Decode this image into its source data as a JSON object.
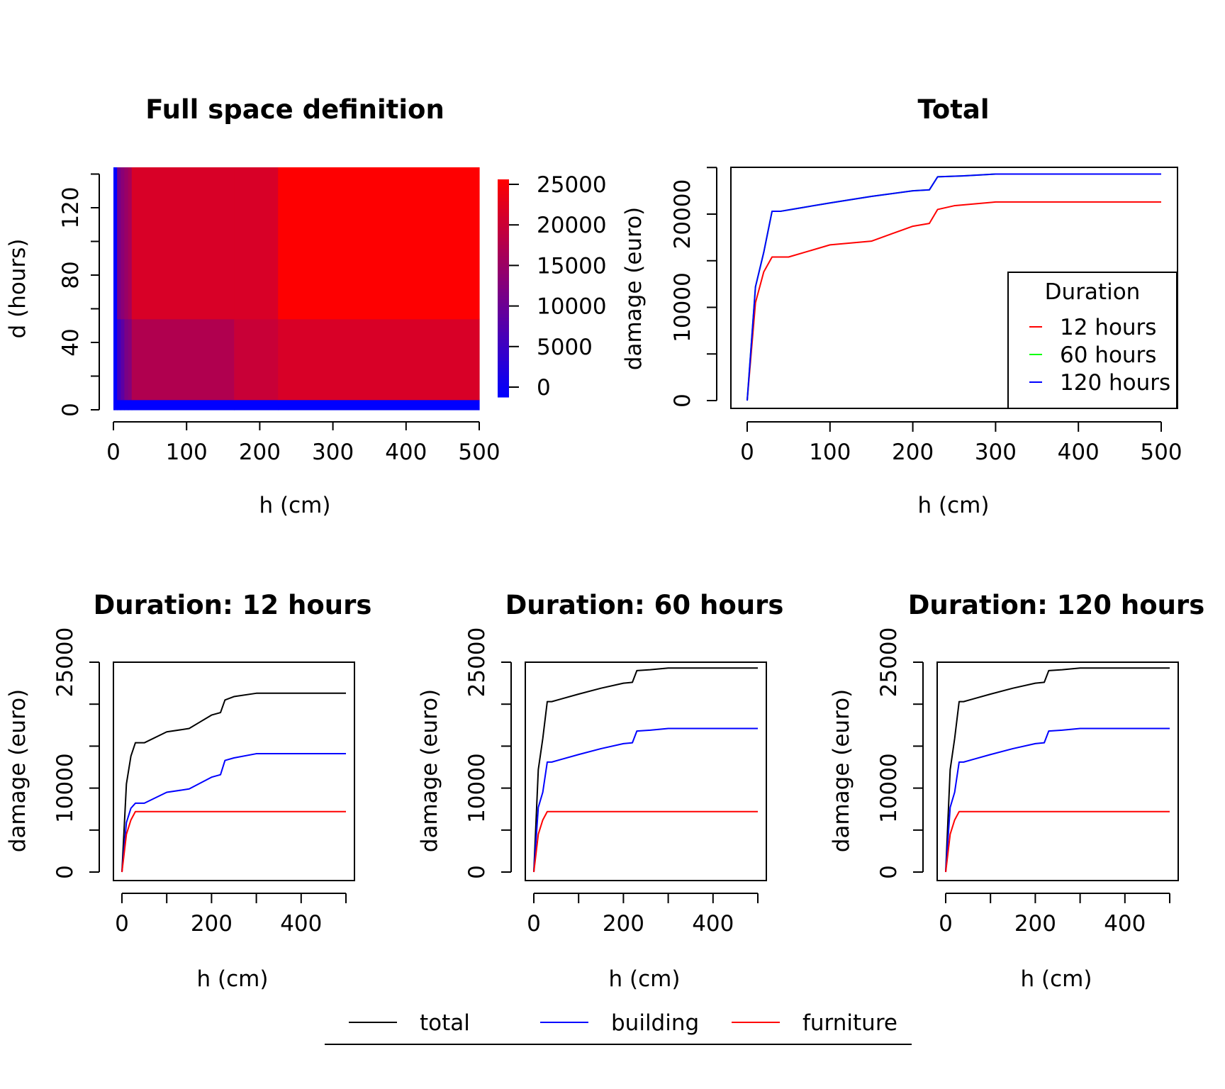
{
  "chart_data": [
    {
      "id": "heatmap",
      "type": "heatmap",
      "title": "Full space definition",
      "xlabel": "h (cm)",
      "ylabel": "d (hours)",
      "xlim": [
        0,
        500
      ],
      "ylim": [
        0,
        140
      ],
      "xticks": [
        "0",
        "100",
        "200",
        "300",
        "400",
        "500"
      ],
      "yticks": [
        "0",
        "40",
        "80",
        "120"
      ],
      "colorbar": {
        "min": 0,
        "max": 25000,
        "low_color": "#0000ff",
        "high_color": "#ff0000",
        "ticks": [
          "0",
          "5000",
          "10000",
          "15000",
          "20000",
          "25000"
        ]
      },
      "h_breaks": [
        0,
        5,
        10,
        15,
        20,
        25,
        165,
        225,
        500
      ],
      "d_breaks": [
        0,
        6,
        54,
        144
      ],
      "z": [
        [
          0,
          0,
          0,
          0,
          0,
          0,
          0,
          0
        ],
        [
          0,
          6500,
          9000,
          12000,
          13000,
          17300,
          19600,
          21200
        ],
        [
          0,
          11500,
          13500,
          15000,
          16500,
          21200,
          21200,
          24900
        ]
      ]
    },
    {
      "id": "total",
      "type": "line",
      "title": "Total",
      "xlabel": "h (cm)",
      "ylabel": "damage (euro)",
      "xlim": [
        0,
        500
      ],
      "ylim": [
        0,
        25000
      ],
      "xticks": [
        "0",
        "100",
        "200",
        "300",
        "400",
        "500"
      ],
      "yticks": [
        "0",
        "10000",
        "20000"
      ],
      "legend": {
        "title": "Duration",
        "placement": "bottom-right"
      },
      "series": [
        {
          "name": "12 hours",
          "color": "#ff0000",
          "x": [
            0,
            10,
            20,
            30,
            50,
            100,
            150,
            175,
            200,
            220,
            230,
            250,
            300,
            500
          ],
          "y": [
            0,
            10500,
            13800,
            15400,
            15400,
            16700,
            17100,
            17900,
            18700,
            19000,
            20500,
            20900,
            21300,
            21300
          ]
        },
        {
          "name": "60 hours",
          "color": "#00ff00",
          "x": [
            0,
            10,
            20,
            30,
            40,
            60,
            100,
            150,
            200,
            220,
            230,
            260,
            300,
            500
          ],
          "y": [
            0,
            12200,
            15900,
            20300,
            20300,
            20600,
            21200,
            21900,
            22500,
            22600,
            24000,
            24100,
            24300,
            24300
          ]
        },
        {
          "name": "120 hours",
          "color": "#0000ff",
          "x": [
            0,
            10,
            20,
            30,
            40,
            60,
            100,
            150,
            200,
            220,
            230,
            260,
            300,
            500
          ],
          "y": [
            0,
            12200,
            15900,
            20300,
            20300,
            20600,
            21200,
            21900,
            22500,
            22600,
            24000,
            24100,
            24300,
            24300
          ]
        }
      ]
    },
    {
      "id": "d12",
      "type": "line",
      "title": "Duration: 12 hours",
      "xlabel": "h (cm)",
      "ylabel": "damage (euro)",
      "xlim": [
        0,
        500
      ],
      "ylim": [
        0,
        25000
      ],
      "xticks": [
        "0",
        "200",
        "400"
      ],
      "yticks": [
        "0",
        "10000",
        "25000"
      ],
      "series": [
        {
          "name": "total",
          "color": "#000000",
          "x": [
            0,
            10,
            20,
            30,
            50,
            100,
            150,
            175,
            200,
            220,
            230,
            250,
            300,
            500
          ],
          "y": [
            0,
            10500,
            13800,
            15400,
            15400,
            16700,
            17100,
            17900,
            18700,
            19000,
            20500,
            20900,
            21300,
            21300
          ]
        },
        {
          "name": "building",
          "color": "#0000ff",
          "x": [
            0,
            10,
            20,
            30,
            50,
            100,
            150,
            200,
            220,
            230,
            250,
            300,
            500
          ],
          "y": [
            0,
            5900,
            7600,
            8200,
            8200,
            9500,
            9900,
            11300,
            11600,
            13300,
            13600,
            14100,
            14100
          ]
        },
        {
          "name": "furniture",
          "color": "#ff0000",
          "x": [
            0,
            10,
            20,
            30,
            500
          ],
          "y": [
            0,
            4500,
            6200,
            7200,
            7200
          ]
        }
      ]
    },
    {
      "id": "d60",
      "type": "line",
      "title": "Duration: 60 hours",
      "xlabel": "h (cm)",
      "ylabel": "damage (euro)",
      "xlim": [
        0,
        500
      ],
      "ylim": [
        0,
        25000
      ],
      "xticks": [
        "0",
        "200",
        "400"
      ],
      "yticks": [
        "0",
        "10000",
        "25000"
      ],
      "series": [
        {
          "name": "total",
          "color": "#000000",
          "x": [
            0,
            10,
            20,
            30,
            40,
            60,
            100,
            150,
            200,
            220,
            230,
            260,
            300,
            500
          ],
          "y": [
            0,
            12200,
            15900,
            20300,
            20300,
            20600,
            21200,
            21900,
            22500,
            22600,
            24000,
            24100,
            24300,
            24300
          ]
        },
        {
          "name": "building",
          "color": "#0000ff",
          "x": [
            0,
            10,
            20,
            30,
            40,
            60,
            100,
            150,
            200,
            220,
            230,
            260,
            300,
            500
          ],
          "y": [
            0,
            7700,
            9500,
            13100,
            13100,
            13400,
            14000,
            14700,
            15300,
            15400,
            16800,
            16900,
            17100,
            17100
          ]
        },
        {
          "name": "furniture",
          "color": "#ff0000",
          "x": [
            0,
            10,
            20,
            30,
            500
          ],
          "y": [
            0,
            4500,
            6200,
            7200,
            7200
          ]
        }
      ]
    },
    {
      "id": "d120",
      "type": "line",
      "title": "Duration: 120 hours",
      "xlabel": "h (cm)",
      "ylabel": "damage (euro)",
      "xlim": [
        0,
        500
      ],
      "ylim": [
        0,
        25000
      ],
      "xticks": [
        "0",
        "200",
        "400"
      ],
      "yticks": [
        "0",
        "10000",
        "25000"
      ],
      "series": [
        {
          "name": "total",
          "color": "#000000",
          "x": [
            0,
            10,
            20,
            30,
            40,
            60,
            100,
            150,
            200,
            220,
            230,
            260,
            300,
            500
          ],
          "y": [
            0,
            12200,
            15900,
            20300,
            20300,
            20600,
            21200,
            21900,
            22500,
            22600,
            24000,
            24100,
            24300,
            24300
          ]
        },
        {
          "name": "building",
          "color": "#0000ff",
          "x": [
            0,
            10,
            20,
            30,
            40,
            60,
            100,
            150,
            200,
            220,
            230,
            260,
            300,
            500
          ],
          "y": [
            0,
            7700,
            9500,
            13100,
            13100,
            13400,
            14000,
            14700,
            15300,
            15400,
            16800,
            16900,
            17100,
            17100
          ]
        },
        {
          "name": "furniture",
          "color": "#ff0000",
          "x": [
            0,
            10,
            20,
            30,
            500
          ],
          "y": [
            0,
            4500,
            6200,
            7200,
            7200
          ]
        }
      ]
    }
  ],
  "bottom_legend": {
    "items": [
      {
        "label": "total",
        "color": "#000000"
      },
      {
        "label": "building",
        "color": "#0000ff"
      },
      {
        "label": "furniture",
        "color": "#ff0000"
      }
    ]
  }
}
